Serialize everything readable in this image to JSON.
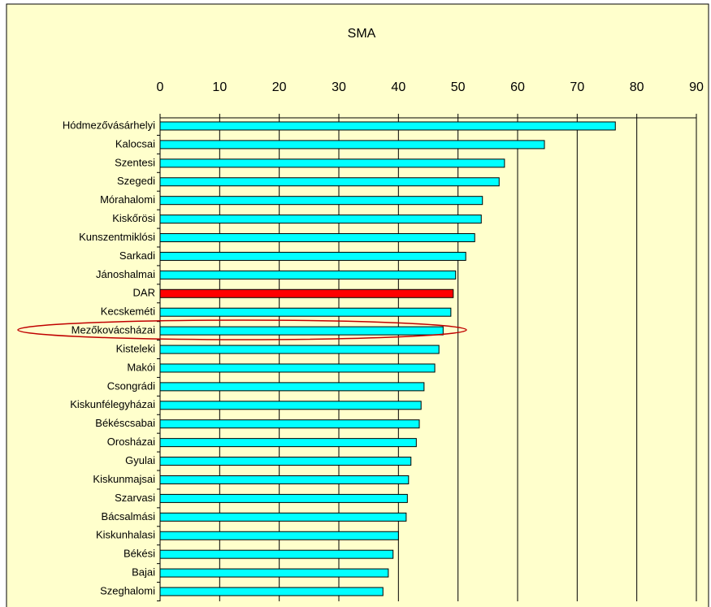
{
  "chart_data": {
    "type": "bar",
    "orientation": "horizontal",
    "title": "SMA",
    "categories": [
      "Hódmezővásárhelyi",
      "Kalocsai",
      "Szentesi",
      "Szegedi",
      "Mórahalomi",
      "Kiskőrösi",
      "Kunszentmiklósi",
      "Sarkadi",
      "Jánoshalmai",
      "DAR",
      "Kecskeméti",
      "Mezőkovácsházai",
      "Kisteleki",
      "Makói",
      "Csongrádi",
      "Kiskunfélegyházai",
      "Békéscsabai",
      "Orosházai",
      "Gyulai",
      "Kiskunmajsai",
      "Szarvasi",
      "Bácsalmási",
      "Kiskunhalasi",
      "Békési",
      "Bajai",
      "Szeghalomi"
    ],
    "values": [
      76.4,
      64.5,
      57.8,
      56.9,
      54.1,
      53.9,
      52.8,
      51.3,
      49.6,
      49.2,
      48.8,
      47.5,
      46.8,
      46.1,
      44.3,
      43.8,
      43.5,
      43.0,
      42.1,
      41.7,
      41.5,
      41.3,
      40.0,
      39.1,
      38.3,
      37.4
    ],
    "colors": [
      "#00ffff",
      "#00ffff",
      "#00ffff",
      "#00ffff",
      "#00ffff",
      "#00ffff",
      "#00ffff",
      "#00ffff",
      "#00ffff",
      "#ff0000",
      "#00ffff",
      "#00ffff",
      "#00ffff",
      "#00ffff",
      "#00ffff",
      "#00ffff",
      "#00ffff",
      "#00ffff",
      "#00ffff",
      "#00ffff",
      "#00ffff",
      "#00ffff",
      "#00ffff",
      "#00ffff",
      "#00ffff",
      "#00ffff"
    ],
    "xlim": [
      0,
      90
    ],
    "xticks": [
      0,
      10,
      20,
      30,
      40,
      50,
      60,
      70,
      80,
      90
    ],
    "grid": true
  }
}
